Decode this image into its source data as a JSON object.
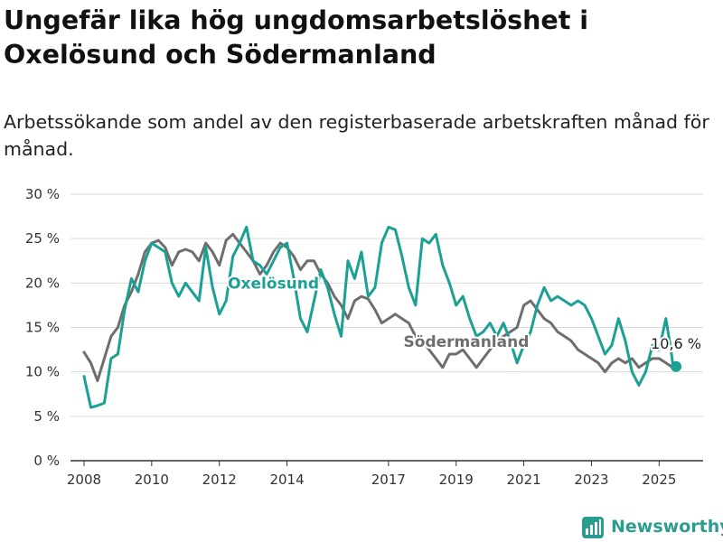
{
  "title": "Ungefär lika hög ungdomsarbetslöshet i Oxelösund och Södermanland",
  "subtitle": "Arbetssökande som andel av den registerbaserade arbetskraften månad för månad.",
  "logo_text": "Newsworthy",
  "colors": {
    "oxelosund": "#1aa193",
    "sodermanland": "#6e6e6e",
    "grid": "#d9d9d9",
    "axis": "#333333"
  },
  "chart_data": {
    "type": "line",
    "title": "Ungefär lika hög ungdomsarbetslöshet i Oxelösund och Södermanland",
    "subtitle": "Arbetssökande som andel av den registerbaserade arbetskraften månad för månad.",
    "xlabel": "",
    "ylabel": "",
    "xlim": [
      2007.6,
      2026.3
    ],
    "ylim": [
      0,
      30
    ],
    "yticks": [
      0,
      5,
      10,
      15,
      20,
      25,
      30
    ],
    "ytick_labels": [
      "0 %",
      "5 %",
      "10 %",
      "15 %",
      "20 %",
      "25 %",
      "30 %"
    ],
    "xticks": [
      2008,
      2010,
      2012,
      2014,
      2017,
      2019,
      2021,
      2023,
      2025
    ],
    "xtick_labels": [
      "2008",
      "2010",
      "2012",
      "2014",
      "2017",
      "2019",
      "2021",
      "2023",
      "2025"
    ],
    "grid": true,
    "end_annotation": {
      "series": "Oxelösund",
      "text": "10,6 %",
      "x": 2025.5,
      "y": 10.6
    },
    "series": [
      {
        "name": "Oxelösund",
        "label_at": {
          "x": 2013.6,
          "y": 20.0
        },
        "points": [
          [
            2008.0,
            9.5
          ],
          [
            2008.2,
            6.0
          ],
          [
            2008.4,
            6.2
          ],
          [
            2008.6,
            6.5
          ],
          [
            2008.8,
            11.5
          ],
          [
            2009.0,
            12.0
          ],
          [
            2009.2,
            17.0
          ],
          [
            2009.4,
            20.5
          ],
          [
            2009.6,
            19.0
          ],
          [
            2009.8,
            22.5
          ],
          [
            2010.0,
            24.5
          ],
          [
            2010.2,
            24.0
          ],
          [
            2010.4,
            23.5
          ],
          [
            2010.6,
            20.0
          ],
          [
            2010.8,
            18.5
          ],
          [
            2011.0,
            20.0
          ],
          [
            2011.2,
            19.0
          ],
          [
            2011.4,
            18.0
          ],
          [
            2011.6,
            24.0
          ],
          [
            2011.8,
            19.5
          ],
          [
            2012.0,
            16.5
          ],
          [
            2012.2,
            18.0
          ],
          [
            2012.4,
            23.0
          ],
          [
            2012.6,
            24.5
          ],
          [
            2012.8,
            26.3
          ],
          [
            2013.0,
            22.5
          ],
          [
            2013.2,
            22.0
          ],
          [
            2013.4,
            21.0
          ],
          [
            2013.6,
            22.5
          ],
          [
            2013.8,
            24.0
          ],
          [
            2014.0,
            24.5
          ],
          [
            2014.2,
            20.5
          ],
          [
            2014.4,
            16.0
          ],
          [
            2014.6,
            14.5
          ],
          [
            2014.8,
            18.0
          ],
          [
            2015.0,
            21.5
          ],
          [
            2015.2,
            19.5
          ],
          [
            2015.4,
            16.5
          ],
          [
            2015.6,
            14.0
          ],
          [
            2015.8,
            22.5
          ],
          [
            2016.0,
            20.5
          ],
          [
            2016.2,
            23.5
          ],
          [
            2016.4,
            18.5
          ],
          [
            2016.6,
            19.5
          ],
          [
            2016.8,
            24.5
          ],
          [
            2017.0,
            26.3
          ],
          [
            2017.2,
            26.0
          ],
          [
            2017.4,
            23.0
          ],
          [
            2017.6,
            19.5
          ],
          [
            2017.8,
            17.5
          ],
          [
            2018.0,
            25.0
          ],
          [
            2018.2,
            24.5
          ],
          [
            2018.4,
            25.5
          ],
          [
            2018.6,
            22.0
          ],
          [
            2018.8,
            20.0
          ],
          [
            2019.0,
            17.5
          ],
          [
            2019.2,
            18.5
          ],
          [
            2019.4,
            16.0
          ],
          [
            2019.6,
            14.0
          ],
          [
            2019.8,
            14.5
          ],
          [
            2020.0,
            15.5
          ],
          [
            2020.2,
            14.0
          ],
          [
            2020.4,
            15.5
          ],
          [
            2020.6,
            13.5
          ],
          [
            2020.8,
            11.0
          ],
          [
            2021.0,
            13.0
          ],
          [
            2021.2,
            14.5
          ],
          [
            2021.4,
            17.5
          ],
          [
            2021.6,
            19.5
          ],
          [
            2021.8,
            18.0
          ],
          [
            2022.0,
            18.5
          ],
          [
            2022.2,
            18.0
          ],
          [
            2022.4,
            17.5
          ],
          [
            2022.6,
            18.0
          ],
          [
            2022.8,
            17.5
          ],
          [
            2023.0,
            16.0
          ],
          [
            2023.2,
            14.0
          ],
          [
            2023.4,
            12.0
          ],
          [
            2023.6,
            13.0
          ],
          [
            2023.8,
            16.0
          ],
          [
            2024.0,
            13.5
          ],
          [
            2024.2,
            10.0
          ],
          [
            2024.4,
            8.5
          ],
          [
            2024.6,
            10.0
          ],
          [
            2024.8,
            13.0
          ],
          [
            2025.0,
            12.5
          ],
          [
            2025.2,
            16.0
          ],
          [
            2025.35,
            12.5
          ],
          [
            2025.4,
            11.0
          ],
          [
            2025.5,
            10.6
          ]
        ]
      },
      {
        "name": "Södermanland",
        "label_at": {
          "x": 2019.3,
          "y": 13.4
        },
        "points": [
          [
            2008.0,
            12.2
          ],
          [
            2008.2,
            11.0
          ],
          [
            2008.4,
            9.0
          ],
          [
            2008.6,
            11.5
          ],
          [
            2008.8,
            14.0
          ],
          [
            2009.0,
            15.0
          ],
          [
            2009.2,
            17.5
          ],
          [
            2009.4,
            19.0
          ],
          [
            2009.6,
            21.0
          ],
          [
            2009.8,
            23.5
          ],
          [
            2010.0,
            24.5
          ],
          [
            2010.2,
            24.8
          ],
          [
            2010.4,
            24.0
          ],
          [
            2010.6,
            22.0
          ],
          [
            2010.8,
            23.5
          ],
          [
            2011.0,
            23.8
          ],
          [
            2011.2,
            23.5
          ],
          [
            2011.4,
            22.5
          ],
          [
            2011.6,
            24.5
          ],
          [
            2011.8,
            23.5
          ],
          [
            2012.0,
            22.0
          ],
          [
            2012.2,
            24.8
          ],
          [
            2012.4,
            25.5
          ],
          [
            2012.6,
            24.5
          ],
          [
            2012.8,
            23.5
          ],
          [
            2013.0,
            22.5
          ],
          [
            2013.2,
            21.0
          ],
          [
            2013.4,
            22.0
          ],
          [
            2013.6,
            23.5
          ],
          [
            2013.8,
            24.5
          ],
          [
            2014.0,
            24.0
          ],
          [
            2014.2,
            23.0
          ],
          [
            2014.4,
            21.5
          ],
          [
            2014.6,
            22.5
          ],
          [
            2014.8,
            22.5
          ],
          [
            2015.0,
            21.0
          ],
          [
            2015.2,
            20.0
          ],
          [
            2015.4,
            18.5
          ],
          [
            2015.6,
            17.5
          ],
          [
            2015.8,
            16.0
          ],
          [
            2016.0,
            18.0
          ],
          [
            2016.2,
            18.5
          ],
          [
            2016.4,
            18.2
          ],
          [
            2016.6,
            17.0
          ],
          [
            2016.8,
            15.5
          ],
          [
            2017.0,
            16.0
          ],
          [
            2017.2,
            16.5
          ],
          [
            2017.4,
            16.0
          ],
          [
            2017.6,
            15.5
          ],
          [
            2017.8,
            14.0
          ],
          [
            2018.0,
            13.5
          ],
          [
            2018.2,
            12.5
          ],
          [
            2018.4,
            11.5
          ],
          [
            2018.6,
            10.5
          ],
          [
            2018.8,
            12.0
          ],
          [
            2019.0,
            12.0
          ],
          [
            2019.2,
            12.5
          ],
          [
            2019.4,
            11.5
          ],
          [
            2019.6,
            10.5
          ],
          [
            2019.8,
            11.5
          ],
          [
            2020.0,
            12.5
          ],
          [
            2020.2,
            13.5
          ],
          [
            2020.4,
            14.0
          ],
          [
            2020.6,
            14.5
          ],
          [
            2020.8,
            15.0
          ],
          [
            2021.0,
            17.5
          ],
          [
            2021.2,
            18.0
          ],
          [
            2021.4,
            17.0
          ],
          [
            2021.6,
            16.0
          ],
          [
            2021.8,
            15.5
          ],
          [
            2022.0,
            14.5
          ],
          [
            2022.2,
            14.0
          ],
          [
            2022.4,
            13.5
          ],
          [
            2022.6,
            12.5
          ],
          [
            2022.8,
            12.0
          ],
          [
            2023.0,
            11.5
          ],
          [
            2023.2,
            11.0
          ],
          [
            2023.4,
            10.0
          ],
          [
            2023.6,
            11.0
          ],
          [
            2023.8,
            11.5
          ],
          [
            2024.0,
            11.0
          ],
          [
            2024.2,
            11.5
          ],
          [
            2024.4,
            10.5
          ],
          [
            2024.6,
            11.0
          ],
          [
            2024.8,
            11.5
          ],
          [
            2025.0,
            11.5
          ],
          [
            2025.2,
            11.0
          ],
          [
            2025.4,
            10.5
          ],
          [
            2025.5,
            10.5
          ]
        ]
      }
    ]
  }
}
